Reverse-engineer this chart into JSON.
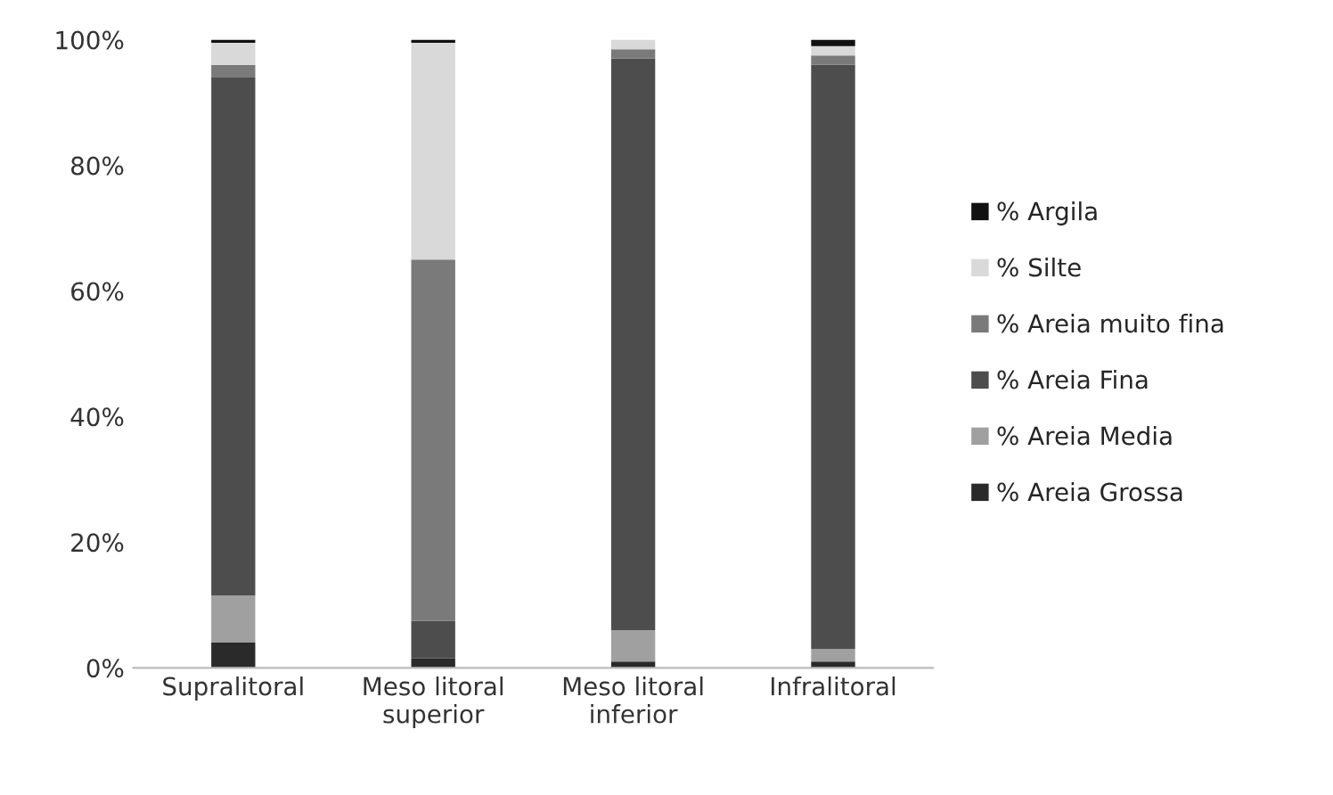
{
  "chart_data": {
    "type": "bar",
    "stacked": true,
    "categories": [
      "Supralitoral",
      "Meso litoral\nsuperior",
      "Meso litoral\ninferior",
      "Infralitoral"
    ],
    "series": [
      {
        "name": "% Areia Grossa",
        "color": "#2a2a2a",
        "values": [
          4,
          1.5,
          1,
          1
        ]
      },
      {
        "name": "% Areia Media",
        "color": "#a0a0a0",
        "values": [
          7.5,
          0,
          5,
          2
        ]
      },
      {
        "name": "% Areia Fina",
        "color": "#4d4d4d",
        "values": [
          82.5,
          6,
          91,
          93
        ]
      },
      {
        "name": "% Areia muito fina",
        "color": "#7a7a7a",
        "values": [
          2,
          57.5,
          1.5,
          1.5
        ]
      },
      {
        "name": "% Silte",
        "color": "#d9d9d9",
        "values": [
          3.5,
          34.5,
          1.5,
          1.5
        ]
      },
      {
        "name": "% Argila",
        "color": "#111111",
        "values": [
          0.5,
          0.5,
          0,
          1
        ]
      }
    ],
    "ylim": [
      0,
      100
    ],
    "yticks": [
      {
        "value": 0,
        "label": "0%"
      },
      {
        "value": 20,
        "label": "20%"
      },
      {
        "value": 40,
        "label": "40%"
      },
      {
        "value": 60,
        "label": "60%"
      },
      {
        "value": 80,
        "label": "80%"
      },
      {
        "value": 100,
        "label": "100%"
      }
    ],
    "grid": false,
    "legend": "right"
  }
}
